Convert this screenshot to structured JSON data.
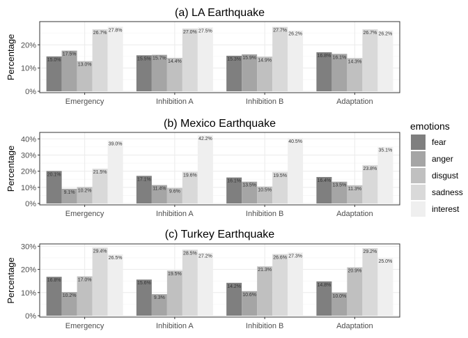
{
  "chart_data": [
    {
      "type": "bar",
      "title": "(a) LA Earthquake",
      "xlabel": "",
      "ylabel": "Percentage",
      "ylim": [
        0,
        0.3
      ],
      "yticks": [
        0,
        0.1,
        0.2
      ],
      "ytick_labels": [
        "0%",
        "10%",
        "20%"
      ],
      "categories": [
        "Emergency",
        "Inhibition A",
        "Inhibition B",
        "Adaptation"
      ],
      "series": [
        {
          "name": "fear",
          "values": [
            0.15,
            0.155,
            0.153,
            0.168
          ],
          "labels": [
            "15.0%",
            "15.5%",
            "15.3%",
            "16.8%"
          ]
        },
        {
          "name": "anger",
          "values": [
            0.175,
            0.157,
            0.159,
            0.161
          ],
          "labels": [
            "17.5%",
            "15.7%",
            "15.9%",
            "16.1%"
          ]
        },
        {
          "name": "disgust",
          "values": [
            0.13,
            0.144,
            0.149,
            0.143
          ],
          "labels": [
            "13.0%",
            "14.4%",
            "14.9%",
            "14.3%"
          ]
        },
        {
          "name": "sadness",
          "values": [
            0.267,
            0.27,
            0.277,
            0.267
          ],
          "labels": [
            "26.7%",
            "27.0%",
            "27.7%",
            "26.7%"
          ]
        },
        {
          "name": "interest",
          "values": [
            0.278,
            0.275,
            0.262,
            0.262
          ],
          "labels": [
            "27.8%",
            "27.5%",
            "26.2%",
            "26.2%"
          ]
        }
      ]
    },
    {
      "type": "bar",
      "title": "(b) Mexico Earthquake",
      "xlabel": "",
      "ylabel": "Percentage",
      "ylim": [
        0,
        0.44
      ],
      "yticks": [
        0,
        0.1,
        0.2,
        0.3,
        0.4
      ],
      "ytick_labels": [
        "0%",
        "10%",
        "20%",
        "30%",
        "40%"
      ],
      "categories": [
        "Emergency",
        "Inhibition A",
        "Inhibition B",
        "Adaptation"
      ],
      "series": [
        {
          "name": "fear",
          "values": [
            0.201,
            0.171,
            0.161,
            0.164
          ],
          "labels": [
            "20.1%",
            "17.1%",
            "16.1%",
            "16.4%"
          ]
        },
        {
          "name": "anger",
          "values": [
            0.091,
            0.114,
            0.135,
            0.135
          ],
          "labels": [
            "9.1%",
            "11.4%",
            "13.5%",
            "13.5%"
          ]
        },
        {
          "name": "disgust",
          "values": [
            0.102,
            0.096,
            0.105,
            0.113
          ],
          "labels": [
            "10.2%",
            "9.6%",
            "10.5%",
            "11.3%"
          ]
        },
        {
          "name": "sadness",
          "values": [
            0.215,
            0.196,
            0.195,
            0.238
          ],
          "labels": [
            "21.5%",
            "19.6%",
            "19.5%",
            "23.8%"
          ]
        },
        {
          "name": "interest",
          "values": [
            0.39,
            0.422,
            0.405,
            0.351
          ],
          "labels": [
            "39.0%",
            "42.2%",
            "40.5%",
            "35.1%"
          ]
        }
      ]
    },
    {
      "type": "bar",
      "title": "(c) Turkey Earthquake",
      "xlabel": "",
      "ylabel": "Percentage",
      "ylim": [
        0,
        0.31
      ],
      "yticks": [
        0,
        0.1,
        0.2,
        0.3
      ],
      "ytick_labels": [
        "0%",
        "10%",
        "20%",
        "30%"
      ],
      "categories": [
        "Emergency",
        "Inhibition A",
        "Inhibition B",
        "Adaptation"
      ],
      "series": [
        {
          "name": "fear",
          "values": [
            0.168,
            0.156,
            0.142,
            0.148
          ],
          "labels": [
            "16.8%",
            "15.6%",
            "14.2%",
            "14.8%"
          ]
        },
        {
          "name": "anger",
          "values": [
            0.102,
            0.093,
            0.106,
            0.1
          ],
          "labels": [
            "10.2%",
            "9.3%",
            "10.6%",
            "10.0%"
          ]
        },
        {
          "name": "disgust",
          "values": [
            0.17,
            0.195,
            0.213,
            0.209
          ],
          "labels": [
            "17.0%",
            "19.5%",
            "21.3%",
            "20.9%"
          ]
        },
        {
          "name": "sadness",
          "values": [
            0.294,
            0.285,
            0.266,
            0.292
          ],
          "labels": [
            "29.4%",
            "28.5%",
            "26.6%",
            "29.2%"
          ]
        },
        {
          "name": "interest",
          "values": [
            0.265,
            0.272,
            0.273,
            0.25
          ],
          "labels": [
            "26.5%",
            "27.2%",
            "27.3%",
            "25.0%"
          ]
        }
      ]
    }
  ],
  "legend": {
    "title": "emotions",
    "items": [
      {
        "name": "fear",
        "color": "#7f7f7f"
      },
      {
        "name": "anger",
        "color": "#a5a5a5"
      },
      {
        "name": "disgust",
        "color": "#c0c0c0"
      },
      {
        "name": "sadness",
        "color": "#d9d9d9"
      },
      {
        "name": "interest",
        "color": "#efefef"
      }
    ],
    "position": "right"
  },
  "colors": {
    "fear": "#7f7f7f",
    "anger": "#a5a5a5",
    "disgust": "#c0c0c0",
    "sadness": "#d9d9d9",
    "interest": "#efefef",
    "grid": "#ebebeb",
    "axis_text": "#4d4d4d",
    "panel_border": "#333333"
  }
}
